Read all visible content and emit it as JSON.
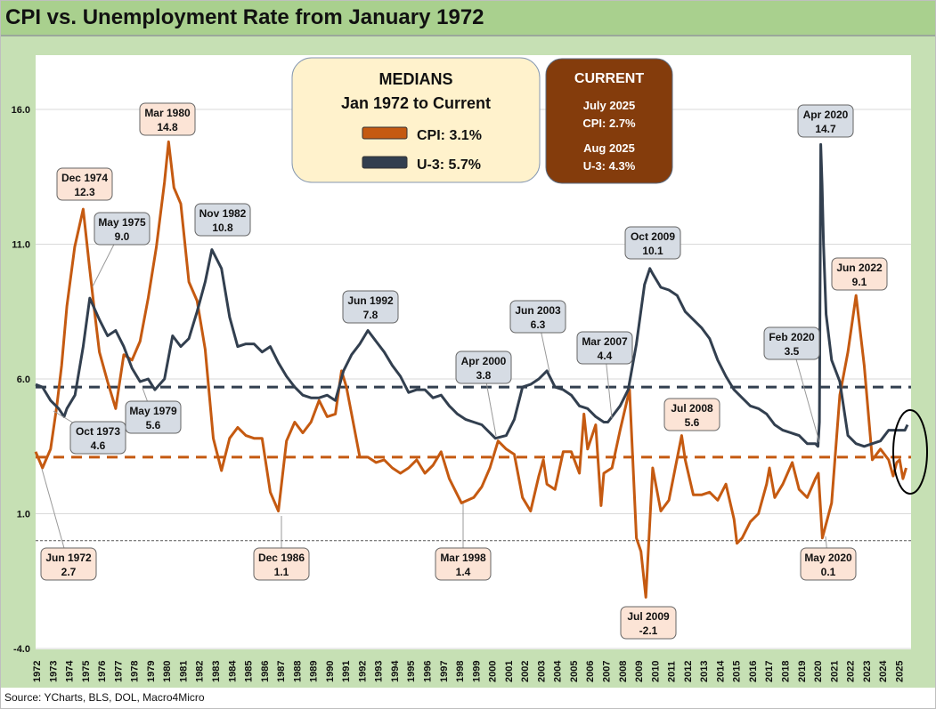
{
  "header": {
    "title": "CPI vs. Unemployment Rate from January 1972"
  },
  "footer": {
    "source": "Source: YCharts, BLS, DOL, Macro4Micro"
  },
  "medians_box": {
    "heading": "MEDIANS",
    "subheading": "Jan 1972 to Current",
    "cpi_label": "CPI: 3.1%",
    "u3_label": "U-3: 5.7%"
  },
  "current_box": {
    "heading": "CURRENT",
    "cpi_date": "July 2025",
    "cpi_value": "CPI: 2.7%",
    "u3_date": "Aug 2025",
    "u3_value": "U-3: 4.3%"
  },
  "colors": {
    "cpi": "#c55a11",
    "u3": "#323f4f",
    "cpi_callout": "#fce4d6",
    "u3_callout": "#d6dce4",
    "medians_bg": "#fff2cc",
    "current_bg": "#843c0c"
  },
  "chart_data": {
    "type": "line",
    "title": "CPI vs. Unemployment Rate from January 1972",
    "ylim": [
      -4,
      16
    ],
    "yticks": [
      "16.0",
      "11.0",
      "6.0",
      "1.0",
      "-4.0"
    ],
    "ytick_values": [
      16,
      11,
      6,
      1,
      -4
    ],
    "xlim": [
      1972,
      2025.8
    ],
    "xticks": [
      "1972",
      "1973",
      "1974",
      "1975",
      "1976",
      "1977",
      "1978",
      "1979",
      "1980",
      "1981",
      "1982",
      "1983",
      "1984",
      "1985",
      "1986",
      "1987",
      "1988",
      "1989",
      "1990",
      "1991",
      "1992",
      "1993",
      "1994",
      "1995",
      "1996",
      "1997",
      "1998",
      "1999",
      "2000",
      "2001",
      "2002",
      "2003",
      "2004",
      "2005",
      "2006",
      "2007",
      "2008",
      "2009",
      "2010",
      "2011",
      "2012",
      "2013",
      "2014",
      "2015",
      "2016",
      "2017",
      "2018",
      "2019",
      "2020",
      "2021",
      "2022",
      "2023",
      "2024",
      "2025"
    ],
    "reference_lines": [
      {
        "name": "CPI median",
        "value": 3.1
      },
      {
        "name": "U-3 median",
        "value": 5.7
      },
      {
        "name": "zero",
        "value": 0
      }
    ],
    "series": [
      {
        "name": "CPI",
        "points": [
          [
            1972,
            3.3
          ],
          [
            1972.42,
            2.7
          ],
          [
            1972.92,
            3.4
          ],
          [
            1973.3,
            5.0
          ],
          [
            1973.6,
            6.5
          ],
          [
            1973.92,
            8.7
          ],
          [
            1974.4,
            10.9
          ],
          [
            1974.92,
            12.3
          ],
          [
            1975.3,
            10.2
          ],
          [
            1975.6,
            8.6
          ],
          [
            1975.92,
            7.0
          ],
          [
            1976.42,
            5.9
          ],
          [
            1976.92,
            4.9
          ],
          [
            1977.42,
            6.9
          ],
          [
            1977.92,
            6.7
          ],
          [
            1978.42,
            7.4
          ],
          [
            1978.92,
            9.0
          ],
          [
            1979.42,
            10.9
          ],
          [
            1979.92,
            13.3
          ],
          [
            1980.17,
            14.8
          ],
          [
            1980.5,
            13.1
          ],
          [
            1980.92,
            12.5
          ],
          [
            1981.42,
            9.6
          ],
          [
            1981.92,
            8.9
          ],
          [
            1982.42,
            7.1
          ],
          [
            1982.92,
            3.8
          ],
          [
            1983.42,
            2.6
          ],
          [
            1983.92,
            3.8
          ],
          [
            1984.42,
            4.2
          ],
          [
            1984.92,
            3.9
          ],
          [
            1985.42,
            3.8
          ],
          [
            1985.92,
            3.8
          ],
          [
            1986.42,
            1.8
          ],
          [
            1986.92,
            1.1
          ],
          [
            1987.42,
            3.7
          ],
          [
            1987.92,
            4.4
          ],
          [
            1988.42,
            4.0
          ],
          [
            1988.92,
            4.4
          ],
          [
            1989.42,
            5.2
          ],
          [
            1989.92,
            4.6
          ],
          [
            1990.42,
            4.7
          ],
          [
            1990.8,
            6.3
          ],
          [
            1991.1,
            5.7
          ],
          [
            1991.42,
            4.7
          ],
          [
            1991.92,
            3.1
          ],
          [
            1992.42,
            3.1
          ],
          [
            1992.92,
            2.9
          ],
          [
            1993.42,
            3.0
          ],
          [
            1993.92,
            2.7
          ],
          [
            1994.42,
            2.5
          ],
          [
            1994.92,
            2.7
          ],
          [
            1995.42,
            3.0
          ],
          [
            1995.92,
            2.5
          ],
          [
            1996.42,
            2.8
          ],
          [
            1996.92,
            3.3
          ],
          [
            1997.42,
            2.3
          ],
          [
            1997.92,
            1.7
          ],
          [
            1998.17,
            1.4
          ],
          [
            1998.92,
            1.6
          ],
          [
            1999.42,
            2.0
          ],
          [
            1999.92,
            2.7
          ],
          [
            2000.42,
            3.7
          ],
          [
            2000.92,
            3.4
          ],
          [
            2001.42,
            3.2
          ],
          [
            2001.92,
            1.6
          ],
          [
            2002.42,
            1.1
          ],
          [
            2002.92,
            2.4
          ],
          [
            2003.2,
            3.0
          ],
          [
            2003.42,
            2.1
          ],
          [
            2003.92,
            1.9
          ],
          [
            2004.42,
            3.3
          ],
          [
            2004.92,
            3.3
          ],
          [
            2005.42,
            2.5
          ],
          [
            2005.7,
            4.7
          ],
          [
            2005.92,
            3.4
          ],
          [
            2006.42,
            4.3
          ],
          [
            2006.75,
            1.3
          ],
          [
            2006.92,
            2.5
          ],
          [
            2007.42,
            2.7
          ],
          [
            2007.92,
            4.1
          ],
          [
            2008.5,
            5.6
          ],
          [
            2008.92,
            0.1
          ],
          [
            2009.2,
            -0.4
          ],
          [
            2009.5,
            -2.1
          ],
          [
            2009.92,
            2.7
          ],
          [
            2010.42,
            1.1
          ],
          [
            2010.92,
            1.5
          ],
          [
            2011.7,
            3.9
          ],
          [
            2011.92,
            3.0
          ],
          [
            2012.42,
            1.7
          ],
          [
            2012.92,
            1.7
          ],
          [
            2013.42,
            1.8
          ],
          [
            2013.92,
            1.5
          ],
          [
            2014.42,
            2.1
          ],
          [
            2014.92,
            0.8
          ],
          [
            2015.1,
            -0.1
          ],
          [
            2015.42,
            0.1
          ],
          [
            2015.92,
            0.7
          ],
          [
            2016.42,
            1.0
          ],
          [
            2016.92,
            2.1
          ],
          [
            2017.1,
            2.7
          ],
          [
            2017.42,
            1.6
          ],
          [
            2017.92,
            2.1
          ],
          [
            2018.5,
            2.9
          ],
          [
            2018.92,
            1.9
          ],
          [
            2019.42,
            1.6
          ],
          [
            2019.92,
            2.3
          ],
          [
            2020.1,
            2.5
          ],
          [
            2020.35,
            0.1
          ],
          [
            2020.92,
            1.4
          ],
          [
            2021.42,
            5.4
          ],
          [
            2021.92,
            7.0
          ],
          [
            2022.42,
            9.1
          ],
          [
            2022.92,
            6.5
          ],
          [
            2023.42,
            3.0
          ],
          [
            2023.92,
            3.4
          ],
          [
            2024.42,
            3.0
          ],
          [
            2024.7,
            2.4
          ],
          [
            2024.92,
            2.9
          ],
          [
            2025.1,
            3.0
          ],
          [
            2025.3,
            2.3
          ],
          [
            2025.5,
            2.7
          ]
        ]
      },
      {
        "name": "U-3",
        "points": [
          [
            1972,
            5.8
          ],
          [
            1972.42,
            5.7
          ],
          [
            1972.92,
            5.2
          ],
          [
            1973.42,
            4.9
          ],
          [
            1973.75,
            4.6
          ],
          [
            1973.92,
            4.9
          ],
          [
            1974.42,
            5.4
          ],
          [
            1974.92,
            7.2
          ],
          [
            1975.33,
            9.0
          ],
          [
            1975.92,
            8.2
          ],
          [
            1976.42,
            7.6
          ],
          [
            1976.92,
            7.8
          ],
          [
            1977.42,
            7.2
          ],
          [
            1977.92,
            6.4
          ],
          [
            1978.42,
            5.9
          ],
          [
            1978.92,
            6.0
          ],
          [
            1979.33,
            5.6
          ],
          [
            1979.92,
            6.0
          ],
          [
            1980.42,
            7.6
          ],
          [
            1980.92,
            7.2
          ],
          [
            1981.42,
            7.5
          ],
          [
            1981.92,
            8.5
          ],
          [
            1982.42,
            9.6
          ],
          [
            1982.83,
            10.8
          ],
          [
            1983.42,
            10.1
          ],
          [
            1983.92,
            8.3
          ],
          [
            1984.42,
            7.2
          ],
          [
            1984.92,
            7.3
          ],
          [
            1985.42,
            7.3
          ],
          [
            1985.92,
            7.0
          ],
          [
            1986.42,
            7.2
          ],
          [
            1986.92,
            6.6
          ],
          [
            1987.42,
            6.1
          ],
          [
            1987.92,
            5.7
          ],
          [
            1988.42,
            5.4
          ],
          [
            1988.92,
            5.3
          ],
          [
            1989.42,
            5.3
          ],
          [
            1989.92,
            5.4
          ],
          [
            1990.42,
            5.2
          ],
          [
            1990.92,
            6.3
          ],
          [
            1991.42,
            6.9
          ],
          [
            1991.92,
            7.3
          ],
          [
            1992.42,
            7.8
          ],
          [
            1992.92,
            7.4
          ],
          [
            1993.42,
            7.0
          ],
          [
            1993.92,
            6.5
          ],
          [
            1994.42,
            6.1
          ],
          [
            1994.92,
            5.5
          ],
          [
            1995.42,
            5.6
          ],
          [
            1995.92,
            5.6
          ],
          [
            1996.42,
            5.3
          ],
          [
            1996.92,
            5.4
          ],
          [
            1997.42,
            5.0
          ],
          [
            1997.92,
            4.7
          ],
          [
            1998.42,
            4.5
          ],
          [
            1998.92,
            4.4
          ],
          [
            1999.42,
            4.3
          ],
          [
            1999.92,
            4.0
          ],
          [
            2000.25,
            3.8
          ],
          [
            2000.92,
            3.9
          ],
          [
            2001.42,
            4.5
          ],
          [
            2001.92,
            5.7
          ],
          [
            2002.42,
            5.8
          ],
          [
            2002.92,
            6.0
          ],
          [
            2003.42,
            6.3
          ],
          [
            2003.92,
            5.7
          ],
          [
            2004.42,
            5.6
          ],
          [
            2004.92,
            5.4
          ],
          [
            2005.42,
            5.0
          ],
          [
            2005.92,
            4.9
          ],
          [
            2006.42,
            4.6
          ],
          [
            2006.92,
            4.4
          ],
          [
            2007.17,
            4.4
          ],
          [
            2007.92,
            5.0
          ],
          [
            2008.42,
            5.6
          ],
          [
            2008.92,
            7.3
          ],
          [
            2009.42,
            9.5
          ],
          [
            2009.75,
            10.1
          ],
          [
            2009.92,
            9.9
          ],
          [
            2010.42,
            9.4
          ],
          [
            2010.92,
            9.3
          ],
          [
            2011.42,
            9.1
          ],
          [
            2011.92,
            8.5
          ],
          [
            2012.42,
            8.2
          ],
          [
            2012.92,
            7.9
          ],
          [
            2013.42,
            7.5
          ],
          [
            2013.92,
            6.7
          ],
          [
            2014.42,
            6.1
          ],
          [
            2014.92,
            5.6
          ],
          [
            2015.42,
            5.3
          ],
          [
            2015.92,
            5.0
          ],
          [
            2016.42,
            4.9
          ],
          [
            2016.92,
            4.7
          ],
          [
            2017.42,
            4.3
          ],
          [
            2017.92,
            4.1
          ],
          [
            2018.42,
            4.0
          ],
          [
            2018.92,
            3.9
          ],
          [
            2019.42,
            3.6
          ],
          [
            2019.92,
            3.6
          ],
          [
            2020.08,
            3.5
          ],
          [
            2020.17,
            4.4
          ],
          [
            2020.25,
            14.7
          ],
          [
            2020.33,
            13.2
          ],
          [
            2020.42,
            11.0
          ],
          [
            2020.58,
            8.4
          ],
          [
            2020.92,
            6.7
          ],
          [
            2021.42,
            5.9
          ],
          [
            2021.92,
            3.9
          ],
          [
            2022.42,
            3.6
          ],
          [
            2022.92,
            3.5
          ],
          [
            2023.42,
            3.6
          ],
          [
            2023.92,
            3.7
          ],
          [
            2024.42,
            4.1
          ],
          [
            2024.92,
            4.1
          ],
          [
            2025.42,
            4.1
          ],
          [
            2025.58,
            4.3
          ]
        ]
      }
    ],
    "callouts": [
      {
        "series": "CPI",
        "date": "Mar 1980",
        "value": "14.8"
      },
      {
        "series": "CPI",
        "date": "Dec 1974",
        "value": "12.3"
      },
      {
        "series": "U-3",
        "date": "May 1975",
        "value": "9.0"
      },
      {
        "series": "U-3",
        "date": "Nov 1982",
        "value": "10.8"
      },
      {
        "series": "U-3",
        "date": "Oct 1973",
        "value": "4.6"
      },
      {
        "series": "U-3",
        "date": "May 1979",
        "value": "5.6"
      },
      {
        "series": "CPI",
        "date": "Jun 1972",
        "value": "2.7"
      },
      {
        "series": "CPI",
        "date": "Dec 1986",
        "value": "1.1"
      },
      {
        "series": "CPI",
        "date": "Mar 1998",
        "value": "1.4"
      },
      {
        "series": "U-3",
        "date": "Jun 1992",
        "value": "7.8"
      },
      {
        "series": "U-3",
        "date": "Apr 2000",
        "value": "3.8"
      },
      {
        "series": "U-3",
        "date": "Jun 2003",
        "value": "6.3"
      },
      {
        "series": "U-3",
        "date": "Mar 2007",
        "value": "4.4"
      },
      {
        "series": "CPI",
        "date": "Jul 2008",
        "value": "5.6"
      },
      {
        "series": "U-3",
        "date": "Oct 2009",
        "value": "10.1"
      },
      {
        "series": "CPI",
        "date": "Jul 2009",
        "value": "-2.1"
      },
      {
        "series": "U-3",
        "date": "Feb 2020",
        "value": "3.5"
      },
      {
        "series": "U-3",
        "date": "Apr 2020",
        "value": "14.7"
      },
      {
        "series": "CPI",
        "date": "Jun 2022",
        "value": "9.1"
      },
      {
        "series": "CPI",
        "date": "May 2020",
        "value": "0.1"
      }
    ]
  }
}
